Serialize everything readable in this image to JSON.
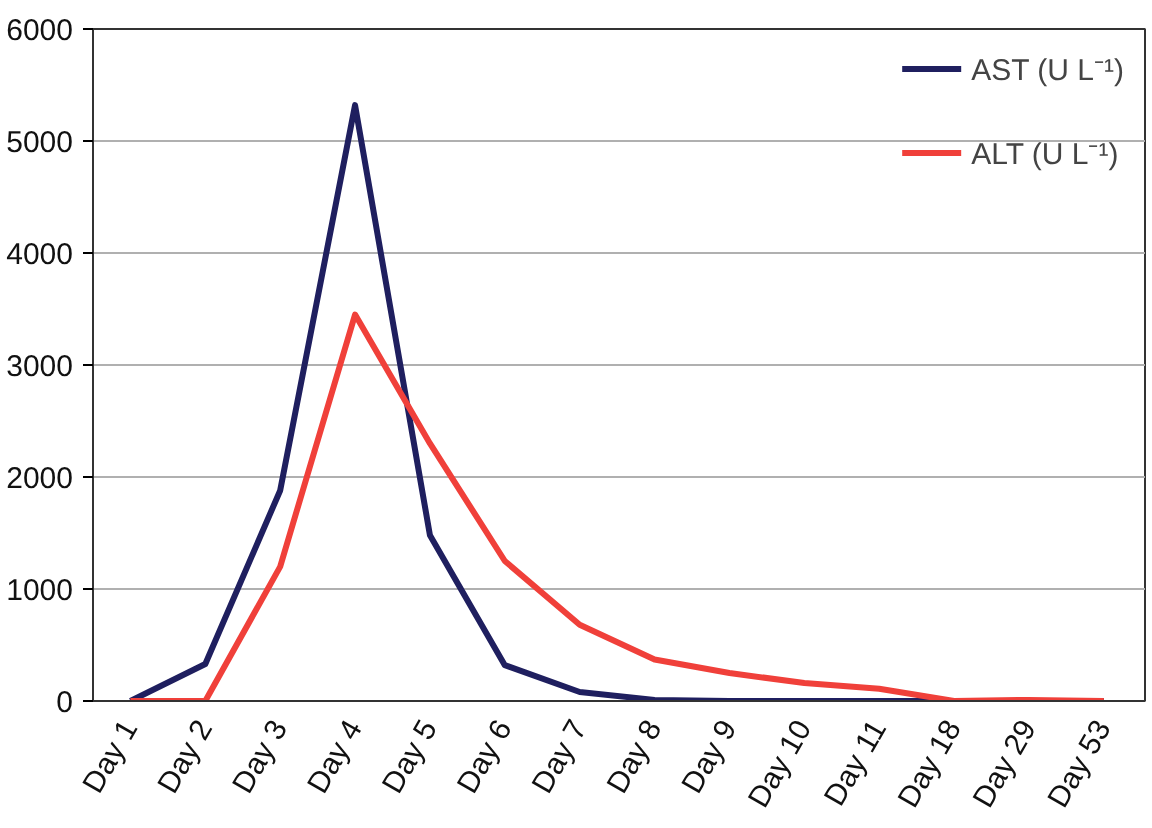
{
  "chart_data": {
    "type": "line",
    "categories": [
      "Day 1",
      "Day 2",
      "Day 3",
      "Day 4",
      "Day 5",
      "Day 6",
      "Day 7",
      "Day 8",
      "Day 9",
      "Day 10",
      "Day 11",
      "Day 18",
      "Day 29",
      "Day 53"
    ],
    "series": [
      {
        "name": "AST (U L⁻¹)",
        "color": "#1f1f5f",
        "values": [
          0,
          330,
          1880,
          5320,
          1480,
          320,
          80,
          10,
          0,
          0,
          0,
          0,
          0,
          0
        ]
      },
      {
        "name": "ALT (U L⁻¹)",
        "color": "#f0403a",
        "values": [
          0,
          0,
          1200,
          3450,
          2300,
          1250,
          680,
          370,
          250,
          160,
          110,
          0,
          10,
          0
        ]
      }
    ],
    "ylim": [
      0,
      6000
    ],
    "yticks": [
      0,
      1000,
      2000,
      3000,
      4000,
      5000,
      6000
    ],
    "grid": "y",
    "legend": "top right"
  }
}
